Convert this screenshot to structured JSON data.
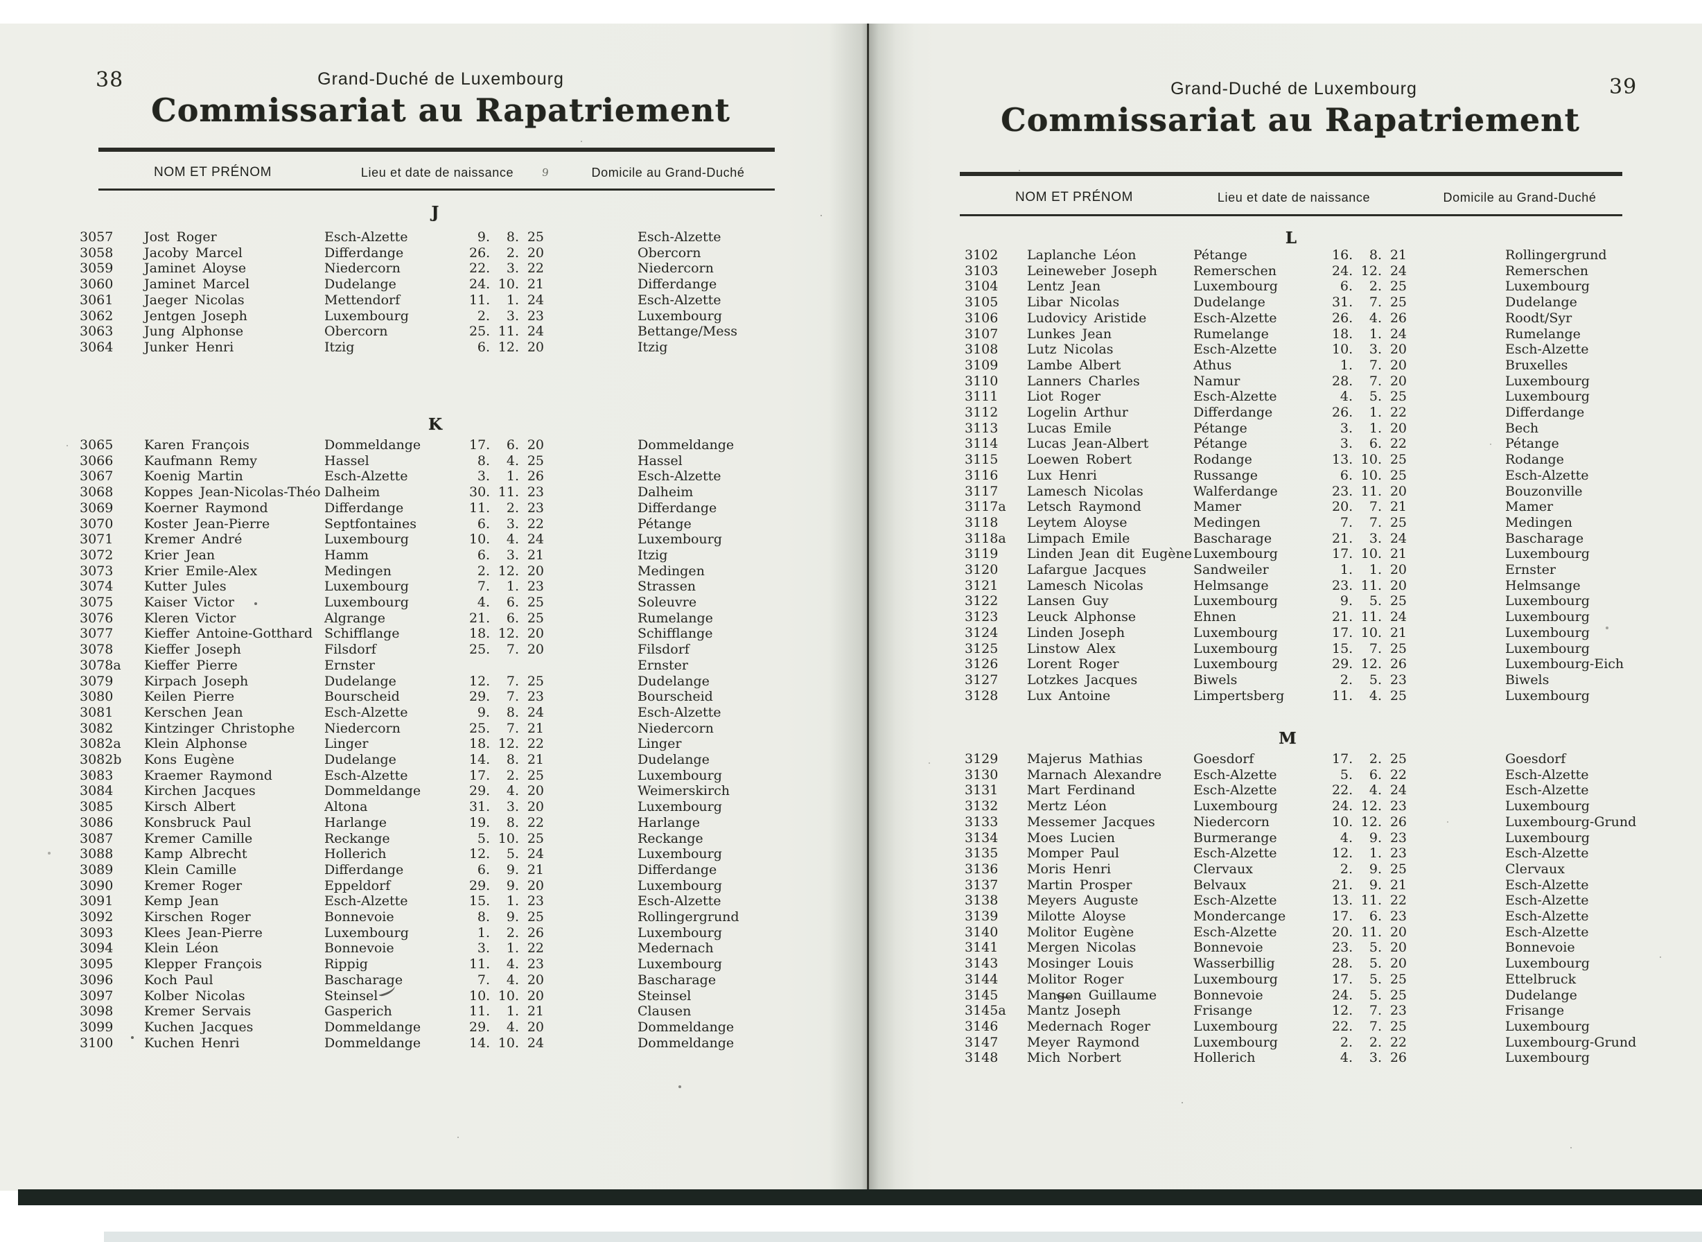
{
  "pages": [
    {
      "page_number": "38",
      "kicker": "Grand-Duché de Luxembourg",
      "title": "Commissariat au Rapatriement",
      "columns": {
        "name": "NOM ET PRÉNOM",
        "birth": "Lieu et date de naissance",
        "domicile": "Domicile au Grand-Duché"
      },
      "noise_mark": "9",
      "sections": [
        {
          "letter": "J",
          "rows": [
            [
              "3057",
              "Jost Roger",
              "Esch-Alzette",
              "9. 8. 25",
              "Esch-Alzette"
            ],
            [
              "3058",
              "Jacoby Marcel",
              "Differdange",
              "26. 2. 20",
              "Obercorn"
            ],
            [
              "3059",
              "Jaminet Aloyse",
              "Niedercorn",
              "22. 3. 22",
              "Niedercorn"
            ],
            [
              "3060",
              "Jaminet Marcel",
              "Dudelange",
              "24. 10. 21",
              "Differdange"
            ],
            [
              "3061",
              "Jaeger Nicolas",
              "Mettendorf",
              "11. 1. 24",
              "Esch-Alzette"
            ],
            [
              "3062",
              "Jentgen Joseph",
              "Luxembourg",
              "2. 3. 23",
              "Luxembourg"
            ],
            [
              "3063",
              "Jung Alphonse",
              "Obercorn",
              "25. 11. 24",
              "Bettange/Mess"
            ],
            [
              "3064",
              "Junker Henri",
              "Itzig",
              "6. 12. 20",
              "Itzig"
            ]
          ]
        },
        {
          "letter": "K",
          "rows": [
            [
              "3065",
              "Karen François",
              "Dommeldange",
              "17. 6. 20",
              "Dommeldange"
            ],
            [
              "3066",
              "Kaufmann Remy",
              "Hassel",
              "8. 4. 25",
              "Hassel"
            ],
            [
              "3067",
              "Koenig Martin",
              "Esch-Alzette",
              "3. 1. 26",
              "Esch-Alzette"
            ],
            [
              "3068",
              "Koppes Jean-Nicolas-Théo",
              "Dalheim",
              "30. 11. 23",
              "Dalheim"
            ],
            [
              "3069",
              "Koerner Raymond",
              "Differdange",
              "11. 2. 23",
              "Differdange"
            ],
            [
              "3070",
              "Koster Jean-Pierre",
              "Septfontaines",
              "6. 3. 22",
              "Pétange"
            ],
            [
              "3071",
              "Kremer André",
              "Luxembourg",
              "10. 4. 24",
              "Luxembourg"
            ],
            [
              "3072",
              "Krier Jean",
              "Hamm",
              "6. 3. 21",
              "Itzig"
            ],
            [
              "3073",
              "Krier Emile-Alex",
              "Medingen",
              "2. 12. 20",
              "Medingen"
            ],
            [
              "3074",
              "Kutter Jules",
              "Luxembourg",
              "7. 1. 23",
              "Strassen"
            ],
            [
              "3075",
              "Kaiser Victor",
              "Luxembourg",
              "4. 6. 25",
              "Soleuvre"
            ],
            [
              "3076",
              "Kleren Victor",
              "Algrange",
              "21. 6. 25",
              "Rumelange"
            ],
            [
              "3077",
              "Kieffer Antoine-Gotthard",
              "Schifflange",
              "18. 12. 20",
              "Schifflange"
            ],
            [
              "3078",
              "Kieffer Joseph",
              "Filsdorf",
              "25. 7. 20",
              "Filsdorf"
            ],
            [
              "3078a",
              "Kieffer Pierre",
              "Ernster",
              "",
              "Ernster"
            ],
            [
              "3079",
              "Kirpach Joseph",
              "Dudelange",
              "12. 7. 25",
              "Dudelange"
            ],
            [
              "3080",
              "Keilen Pierre",
              "Bourscheid",
              "29. 7. 23",
              "Bourscheid"
            ],
            [
              "3081",
              "Kerschen Jean",
              "Esch-Alzette",
              "9. 8. 24",
              "Esch-Alzette"
            ],
            [
              "3082",
              "Kintzinger Christophe",
              "Niedercorn",
              "25. 7. 21",
              "Niedercorn"
            ],
            [
              "3082a",
              "Klein Alphonse",
              "Linger",
              "18. 12. 22",
              "Linger"
            ],
            [
              "3082b",
              "Kons Eugène",
              "Dudelange",
              "14. 8. 21",
              "Dudelange"
            ],
            [
              "3083",
              "Kraemer Raymond",
              "Esch-Alzette",
              "17. 2. 25",
              "Luxembourg"
            ],
            [
              "3084",
              "Kirchen Jacques",
              "Dommeldange",
              "29. 4. 20",
              "Weimerskirch"
            ],
            [
              "3085",
              "Kirsch Albert",
              "Altona",
              "31. 3. 20",
              "Luxembourg"
            ],
            [
              "3086",
              "Konsbruck Paul",
              "Harlange",
              "19. 8. 22",
              "Harlange"
            ],
            [
              "3087",
              "Kremer Camille",
              "Reckange",
              "5. 10. 25",
              "Reckange"
            ],
            [
              "3088",
              "Kamp Albrecht",
              "Hollerich",
              "12. 5. 24",
              "Luxembourg"
            ],
            [
              "3089",
              "Klein Camille",
              "Differdange",
              "6. 9. 21",
              "Differdange"
            ],
            [
              "3090",
              "Kremer Roger",
              "Eppeldorf",
              "29. 9. 20",
              "Luxembourg"
            ],
            [
              "3091",
              "Kemp Jean",
              "Esch-Alzette",
              "15. 1. 23",
              "Esch-Alzette"
            ],
            [
              "3092",
              "Kirschen Roger",
              "Bonnevoie",
              "8. 9. 25",
              "Rollingergrund"
            ],
            [
              "3093",
              "Klees Jean-Pierre",
              "Luxembourg",
              "1. 2. 26",
              "Luxembourg"
            ],
            [
              "3094",
              "Klein Léon",
              "Bonnevoie",
              "3. 1. 22",
              "Medernach"
            ],
            [
              "3095",
              "Klepper François",
              "Rippig",
              "11. 4. 23",
              "Luxembourg"
            ],
            [
              "3096",
              "Koch Paul",
              "Bascharage",
              "7. 4. 20",
              "Bascharage"
            ],
            [
              "3097",
              "Kolber Nicolas",
              "Steinsel",
              "10. 10. 20",
              "Steinsel"
            ],
            [
              "3098",
              "Kremer Servais",
              "Gasperich",
              "11. 1. 21",
              "Clausen"
            ],
            [
              "3099",
              "Kuchen Jacques",
              "Dommeldange",
              "29. 4. 20",
              "Dommeldange"
            ],
            [
              "3100",
              "Kuchen Henri",
              "Dommeldange",
              "14. 10. 24",
              "Dommeldange"
            ]
          ]
        }
      ]
    },
    {
      "page_number": "39",
      "kicker": "Grand-Duché de Luxembourg",
      "title": "Commissariat au Rapatriement",
      "columns": {
        "name": "NOM ET PRÉNOM",
        "birth": "Lieu et date de naissance",
        "domicile": "Domicile au Grand-Duché"
      },
      "sections": [
        {
          "letter": "L",
          "rows": [
            [
              "3102",
              "Laplanche Léon",
              "Pétange",
              "16. 8. 21",
              "Rollingergrund"
            ],
            [
              "3103",
              "Leineweber Joseph",
              "Remerschen",
              "24. 12. 24",
              "Remerschen"
            ],
            [
              "3104",
              "Lentz Jean",
              "Luxembourg",
              "6. 2. 25",
              "Luxembourg"
            ],
            [
              "3105",
              "Libar Nicolas",
              "Dudelange",
              "31. 7. 25",
              "Dudelange"
            ],
            [
              "3106",
              "Ludovicy Aristide",
              "Esch-Alzette",
              "26. 4. 26",
              "Roodt/Syr"
            ],
            [
              "3107",
              "Lunkes Jean",
              "Rumelange",
              "18. 1. 24",
              "Rumelange"
            ],
            [
              "3108",
              "Lutz Nicolas",
              "Esch-Alzette",
              "10. 3. 20",
              "Esch-Alzette"
            ],
            [
              "3109",
              "Lambe Albert",
              "Athus",
              "1. 7. 20",
              "Bruxelles"
            ],
            [
              "3110",
              "Lanners Charles",
              "Namur",
              "28. 7. 20",
              "Luxembourg"
            ],
            [
              "3111",
              "Liot Roger",
              "Esch-Alzette",
              "4. 5. 25",
              "Luxembourg"
            ],
            [
              "3112",
              "Logelin Arthur",
              "Differdange",
              "26. 1. 22",
              "Differdange"
            ],
            [
              "3113",
              "Lucas Emile",
              "Pétange",
              "3. 1. 20",
              "Bech"
            ],
            [
              "3114",
              "Lucas Jean-Albert",
              "Pétange",
              "3. 6. 22",
              "Pétange"
            ],
            [
              "3115",
              "Loewen Robert",
              "Rodange",
              "13. 10. 25",
              "Rodange"
            ],
            [
              "3116",
              "Lux Henri",
              "Russange",
              "6. 10. 25",
              "Esch-Alzette"
            ],
            [
              "3117",
              "Lamesch Nicolas",
              "Walferdange",
              "23. 11. 20",
              "Bouzonville"
            ],
            [
              "3117a",
              "Letsch Raymond",
              "Mamer",
              "20. 7. 21",
              "Mamer"
            ],
            [
              "3118",
              "Leytem Aloyse",
              "Medingen",
              "7. 7. 25",
              "Medingen"
            ],
            [
              "3118a",
              "Limpach Emile",
              "Bascharage",
              "21. 3. 24",
              "Bascharage"
            ],
            [
              "3119",
              "Linden Jean dit Eugène",
              "Luxembourg",
              "17. 10. 21",
              "Luxembourg"
            ],
            [
              "3120",
              "Lafargue Jacques",
              "Sandweiler",
              "1. 1. 20",
              "Ernster"
            ],
            [
              "3121",
              "Lamesch Nicolas",
              "Helmsange",
              "23. 11. 20",
              "Helmsange"
            ],
            [
              "3122",
              "Lansen Guy",
              "Luxembourg",
              "9. 5. 25",
              "Luxembourg"
            ],
            [
              "3123",
              "Leuck Alphonse",
              "Ehnen",
              "21. 11. 24",
              "Luxembourg"
            ],
            [
              "3124",
              "Linden Joseph",
              "Luxembourg",
              "17. 10. 21",
              "Luxembourg"
            ],
            [
              "3125",
              "Linstow Alex",
              "Luxembourg",
              "15. 7. 25",
              "Luxembourg"
            ],
            [
              "3126",
              "Lorent Roger",
              "Luxembourg",
              "29. 12. 26",
              "Luxembourg-Eich"
            ],
            [
              "3127",
              "Lotzkes Jacques",
              "Biwels",
              "2. 5. 23",
              "Biwels"
            ],
            [
              "3128",
              "Lux Antoine",
              "Limpertsberg",
              "11. 4. 25",
              "Luxembourg"
            ]
          ]
        },
        {
          "letter": "M",
          "rows": [
            [
              "3129",
              "Majerus Mathias",
              "Goesdorf",
              "17. 2. 25",
              "Goesdorf"
            ],
            [
              "3130",
              "Marnach Alexandre",
              "Esch-Alzette",
              "5. 6. 22",
              "Esch-Alzette"
            ],
            [
              "3131",
              "Mart Ferdinand",
              "Esch-Alzette",
              "22. 4. 24",
              "Esch-Alzette"
            ],
            [
              "3132",
              "Mertz Léon",
              "Luxembourg",
              "24. 12. 23",
              "Luxembourg"
            ],
            [
              "3133",
              "Messemer Jacques",
              "Niedercorn",
              "10. 12. 26",
              "Luxembourg-Grund"
            ],
            [
              "3134",
              "Moes Lucien",
              "Burmerange",
              "4. 9. 23",
              "Luxembourg"
            ],
            [
              "3135",
              "Momper Paul",
              "Esch-Alzette",
              "12. 1. 23",
              "Esch-Alzette"
            ],
            [
              "3136",
              "Moris Henri",
              "Clervaux",
              "2. 9. 25",
              "Clervaux"
            ],
            [
              "3137",
              "Martin Prosper",
              "Belvaux",
              "21. 9. 21",
              "Esch-Alzette"
            ],
            [
              "3138",
              "Meyers Auguste",
              "Esch-Alzette",
              "13. 11. 22",
              "Esch-Alzette"
            ],
            [
              "3139",
              "Milotte Aloyse",
              "Mondercange",
              "17. 6. 23",
              "Esch-Alzette"
            ],
            [
              "3140",
              "Molitor Eugène",
              "Esch-Alzette",
              "20. 11. 20",
              "Esch-Alzette"
            ],
            [
              "3141",
              "Mergen Nicolas",
              "Bonnevoie",
              "23. 5. 20",
              "Bonnevoie"
            ],
            [
              "3143",
              "Mosinger Louis",
              "Wasserbillig",
              "28. 5. 20",
              "Luxembourg"
            ],
            [
              "3144",
              "Molitor Roger",
              "Luxembourg",
              "17. 5. 25",
              "Ettelbruck"
            ],
            [
              "3145",
              "Mangen Guillaume",
              "Bonnevoie",
              "24. 5. 25",
              "Dudelange"
            ],
            [
              "3145a",
              "Mantz Joseph",
              "Frisange",
              "12. 7. 23",
              "Frisange"
            ],
            [
              "3146",
              "Medernach Roger",
              "Luxembourg",
              "22. 7. 25",
              "Luxembourg"
            ],
            [
              "3147",
              "Meyer Raymond",
              "Luxembourg",
              "2. 2. 22",
              "Luxembourg-Grund"
            ],
            [
              "3148",
              "Mich Norbert",
              "Hollerich",
              "4. 3. 26",
              "Luxembourg"
            ]
          ]
        }
      ]
    }
  ]
}
